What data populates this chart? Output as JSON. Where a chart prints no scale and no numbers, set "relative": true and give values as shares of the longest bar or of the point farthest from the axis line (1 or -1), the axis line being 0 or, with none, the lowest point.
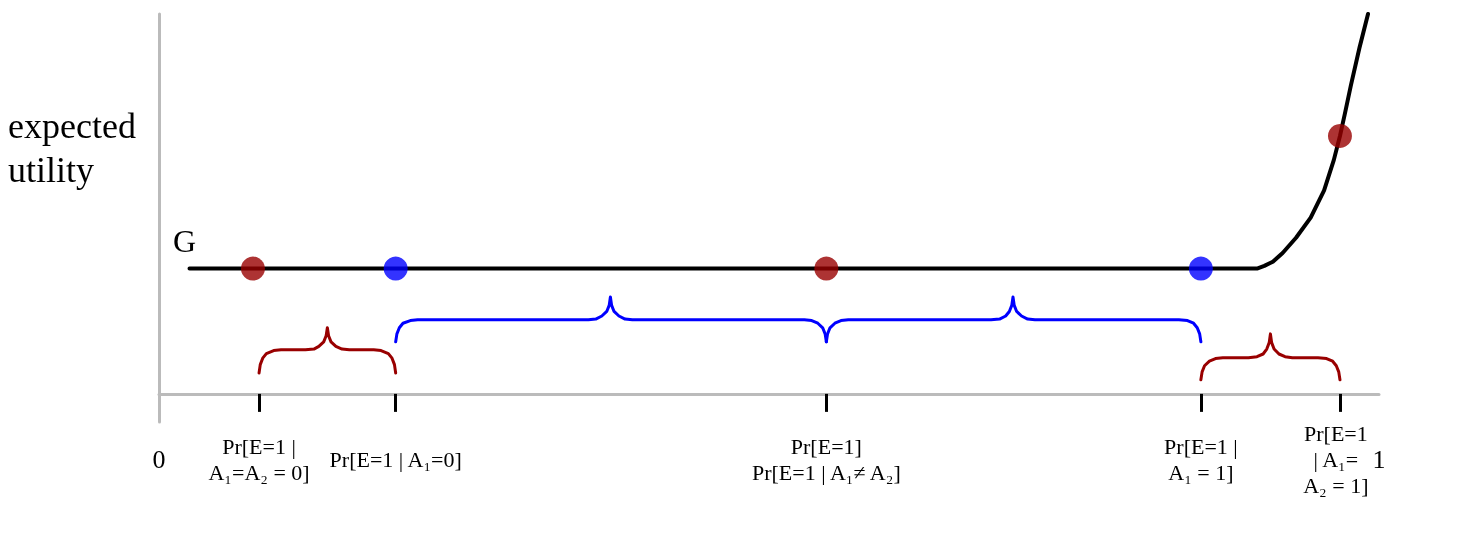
{
  "chart_data": {
    "type": "line",
    "relative": true,
    "ylabel": "expected utility",
    "xlim": [
      0,
      1
    ],
    "xticks": [
      0,
      {
        "value": 0.082,
        "label": "Pr[E=1 | A₁=A₂ = 0]"
      },
      {
        "value": 0.194,
        "label": "Pr[E=1 | A₁=0]"
      },
      {
        "value": 0.547,
        "label": "Pr[E=1]\nPr[E=1 | A₁≠ A₂]"
      },
      {
        "value": 0.854,
        "label": "Pr[E=1 | A₁ = 1]"
      },
      {
        "value": 0.968,
        "label": "Pr[E=1 | A₁= A₂ = 1]"
      },
      1
    ],
    "series": [
      {
        "name": "G",
        "type": "line",
        "color": "#000000",
        "x": [
          0.025,
          0.9,
          0.906,
          0.913,
          0.921,
          0.932,
          0.944,
          0.955,
          0.963,
          0.968,
          0.972,
          0.977,
          0.984,
          0.991
        ],
        "values": [
          0.33,
          0.33,
          0.337,
          0.348,
          0.371,
          0.411,
          0.464,
          0.536,
          0.616,
          0.679,
          0.737,
          0.813,
          0.911,
          1
        ]
      },
      {
        "type": "line",
        "color": "#990000",
        "x": [
          0.082,
          0.083,
          0.085,
          0.088,
          0.094,
          0.1,
          0.12,
          0.127,
          0.131,
          0.135,
          0.137,
          0.138,
          0.139,
          0.141,
          0.145,
          0.15,
          0.156,
          0.176,
          0.182,
          0.188,
          0.191,
          0.193,
          0.194
        ],
        "values": [
          0.055,
          0.077,
          0.094,
          0.106,
          0.114,
          0.116,
          0.116,
          0.118,
          0.125,
          0.137,
          0.153,
          0.174,
          0.153,
          0.137,
          0.125,
          0.118,
          0.116,
          0.116,
          0.114,
          0.106,
          0.094,
          0.077,
          0.055
        ]
      },
      {
        "type": "line",
        "color": "#0000ff",
        "x": [
          0.194,
          0.195,
          0.197,
          0.2,
          0.206,
          0.212,
          0.352,
          0.358,
          0.363,
          0.367,
          0.369,
          0.37,
          0.371,
          0.373,
          0.377,
          0.382,
          0.388,
          0.529,
          0.535,
          0.54,
          0.544,
          0.546,
          0.547
        ],
        "values": [
          0.137,
          0.158,
          0.174,
          0.186,
          0.193,
          0.195,
          0.195,
          0.197,
          0.205,
          0.217,
          0.233,
          0.255,
          0.233,
          0.217,
          0.205,
          0.197,
          0.195,
          0.195,
          0.193,
          0.186,
          0.174,
          0.158,
          0.137
        ]
      },
      {
        "type": "line",
        "color": "#0000ff",
        "x": [
          0.547,
          0.548,
          0.55,
          0.554,
          0.559,
          0.565,
          0.682,
          0.689,
          0.694,
          0.697,
          0.699,
          0.7,
          0.701,
          0.703,
          0.707,
          0.712,
          0.718,
          0.836,
          0.843,
          0.848,
          0.851,
          0.853,
          0.854
        ],
        "values": [
          0.137,
          0.158,
          0.174,
          0.186,
          0.193,
          0.195,
          0.195,
          0.197,
          0.205,
          0.217,
          0.233,
          0.255,
          0.233,
          0.217,
          0.205,
          0.197,
          0.195,
          0.195,
          0.193,
          0.186,
          0.174,
          0.158,
          0.137
        ]
      },
      {
        "type": "line",
        "color": "#990000",
        "x": [
          0.854,
          0.855,
          0.857,
          0.861,
          0.866,
          0.872,
          0.893,
          0.9,
          0.905,
          0.908,
          0.91,
          0.911,
          0.912,
          0.914,
          0.918,
          0.923,
          0.929,
          0.95,
          0.957,
          0.962,
          0.965,
          0.967,
          0.968
        ],
        "values": [
          0.037,
          0.058,
          0.074,
          0.086,
          0.093,
          0.095,
          0.095,
          0.098,
          0.105,
          0.118,
          0.135,
          0.158,
          0.135,
          0.118,
          0.105,
          0.098,
          0.095,
          0.095,
          0.093,
          0.086,
          0.074,
          0.058,
          0.037
        ]
      },
      {
        "type": "scatter",
        "marker": "circle",
        "colors": [
          "#990000",
          "#0000ff",
          "#990000",
          "#0000ff",
          "#990000"
        ],
        "x": [
          0.077,
          0.194,
          0.547,
          0.854,
          0.968
        ],
        "values": [
          0.33,
          0.33,
          0.33,
          0.33,
          0.679
        ]
      }
    ]
  }
}
